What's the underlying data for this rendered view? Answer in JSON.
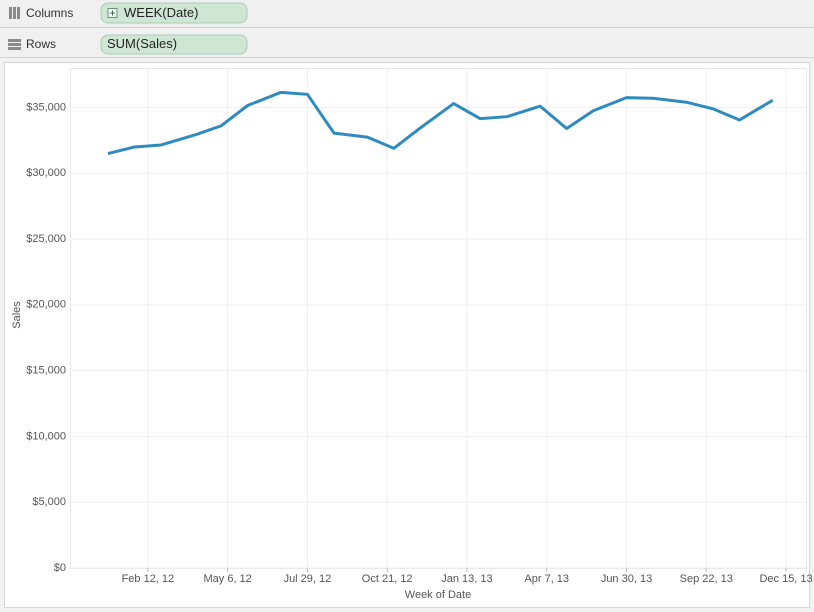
{
  "shelves": {
    "columns": {
      "label": "Columns",
      "pill": "WEEK(Date)"
    },
    "rows": {
      "label": "Rows",
      "pill": "SUM(Sales)"
    }
  },
  "chart_data": {
    "type": "line",
    "x_label": "Week of Date",
    "y_label": "Sales",
    "x": [
      "2012-01-01",
      "2012-01-29",
      "2012-02-26",
      "2012-04-01",
      "2012-04-29",
      "2012-05-27",
      "2012-07-01",
      "2012-07-29",
      "2012-08-26",
      "2012-09-30",
      "2012-10-28",
      "2012-11-25",
      "2012-12-30",
      "2013-01-27",
      "2013-02-24",
      "2013-03-31",
      "2013-04-28",
      "2013-05-26",
      "2013-06-30",
      "2013-07-28",
      "2013-09-01",
      "2013-09-29",
      "2013-10-27",
      "2013-12-01"
    ],
    "series": [
      {
        "name": "SUM(Sales)",
        "color": "#2f8bbf",
        "values": [
          31500,
          32000,
          32150,
          32900,
          33600,
          35150,
          36150,
          36000,
          33050,
          32750,
          31900,
          33450,
          35300,
          34150,
          34300,
          35100,
          33400,
          34750,
          35750,
          35700,
          35400,
          34900,
          34050,
          35550
        ]
      }
    ],
    "xlim": [
      "2011-11-22",
      "2014-01-05"
    ],
    "xticks": [
      {
        "value": "2012-02-12",
        "label": "Feb 12, 12"
      },
      {
        "value": "2012-05-06",
        "label": "May 6, 12"
      },
      {
        "value": "2012-07-29",
        "label": "Jul 29, 12"
      },
      {
        "value": "2012-10-21",
        "label": "Oct 21, 12"
      },
      {
        "value": "2013-01-13",
        "label": "Jan 13, 13"
      },
      {
        "value": "2013-04-07",
        "label": "Apr 7, 13"
      },
      {
        "value": "2013-06-30",
        "label": "Jun 30, 13"
      },
      {
        "value": "2013-09-22",
        "label": "Sep 22, 13"
      },
      {
        "value": "2013-12-15",
        "label": "Dec 15, 13"
      }
    ],
    "ylim": [
      0,
      38000
    ],
    "yticks": [
      {
        "value": 0,
        "label": "$0"
      },
      {
        "value": 5000,
        "label": "$5,000"
      },
      {
        "value": 10000,
        "label": "$10,000"
      },
      {
        "value": 15000,
        "label": "$15,000"
      },
      {
        "value": 20000,
        "label": "$20,000"
      },
      {
        "value": 25000,
        "label": "$25,000"
      },
      {
        "value": 30000,
        "label": "$30,000"
      },
      {
        "value": 35000,
        "label": "$35,000"
      }
    ],
    "grid": true
  }
}
